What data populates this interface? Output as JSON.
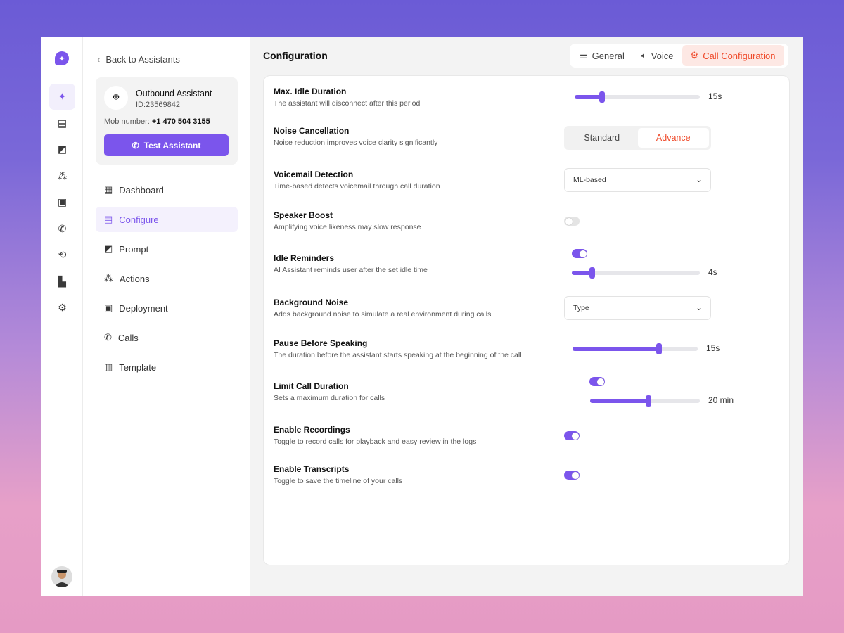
{
  "colors": {
    "accent": "#7b55ec",
    "active_tab": "#ef4a2a"
  },
  "rail": {
    "icons": [
      "sparkle-icon",
      "book-icon",
      "activity-icon",
      "nodes-icon",
      "contact-icon",
      "phone-icon",
      "share-icon",
      "building-icon",
      "gear-icon"
    ]
  },
  "panel": {
    "back": "Back to Assistants",
    "assistant": {
      "name": "Outbound  Assistant",
      "id": "ID:23569842",
      "mob_label": "Mob number:",
      "mob_value": "+1 470 504 3155",
      "test_button": "Test Assistant"
    },
    "nav": [
      {
        "label": "Dashboard",
        "icon": "grid-icon"
      },
      {
        "label": "Configure",
        "icon": "book-icon",
        "active": true
      },
      {
        "label": "Prompt",
        "icon": "activity-icon"
      },
      {
        "label": "Actions",
        "icon": "nodes-icon"
      },
      {
        "label": "Deployment",
        "icon": "contact-icon"
      },
      {
        "label": "Calls",
        "icon": "phone-icon"
      },
      {
        "label": "Template",
        "icon": "layout-icon"
      }
    ]
  },
  "main": {
    "title": "Configuration",
    "tabs": [
      {
        "label": "General"
      },
      {
        "label": "Voice"
      },
      {
        "label": "Call Configuration",
        "active": true
      }
    ],
    "settings": {
      "idle": {
        "title": "Max. Idle Duration",
        "desc": "The assistant will disconnect after this period",
        "value": "15s",
        "level": 0.22
      },
      "noise": {
        "title": "Noise Cancellation",
        "desc": "Noise reduction improves voice clarity significantly",
        "options": [
          "Standard",
          "Advance"
        ],
        "selected": "Advance"
      },
      "voicemail": {
        "title": "Voicemail Detection",
        "desc": "Time-based detects voicemail through call duration",
        "value": "ML-based"
      },
      "speaker": {
        "title": "Speaker Boost",
        "desc": "Amplifying voice likeness may slow response",
        "on": false
      },
      "reminders": {
        "title": "Idle Reminders",
        "desc": "AI Assistant reminds user after the set idle time",
        "on": true,
        "value": "4s",
        "level": 0.16
      },
      "bg": {
        "title": "Background Noise",
        "desc": "Adds background noise to simulate a real environment during calls",
        "value": "Type"
      },
      "pause": {
        "title": "Pause Before Speaking",
        "desc": "The duration before the assistant starts speaking at the beginning of the call",
        "value": "15s",
        "level": 0.69
      },
      "limit": {
        "title": "Limit Call Duration",
        "desc": "Sets a maximum duration for calls",
        "on": true,
        "value": "20 min",
        "level": 0.53
      },
      "rec": {
        "title": "Enable Recordings",
        "desc": "Toggle to record calls for playback and easy review in the logs",
        "on": true
      },
      "trans": {
        "title": "Enable Transcripts",
        "desc": "Toggle to save the timeline of your calls",
        "on": true
      }
    }
  }
}
